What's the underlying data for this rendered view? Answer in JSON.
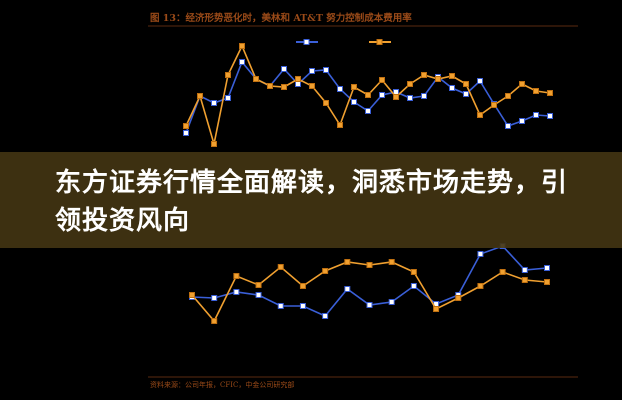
{
  "chart_data": [
    {
      "type": "line",
      "title": "图 13：经济形势恶化时，美林和 AT&T 努力控制成本费用率",
      "legend_placement": "top",
      "grid": false,
      "series": [
        {
          "color": "#3a5fd8",
          "values": [
            15,
            52,
            45,
            50,
            86,
            69,
            62,
            79,
            64,
            77,
            78,
            59,
            46,
            37,
            53,
            56,
            50,
            52,
            71,
            60,
            54,
            67,
            44,
            22,
            27,
            33,
            32
          ]
        },
        {
          "color": "#f0a030",
          "values": [
            22,
            52,
            4,
            73,
            102,
            69,
            62,
            61,
            69,
            62,
            45,
            23,
            61,
            53,
            68,
            51,
            64,
            73,
            69,
            72,
            64,
            33,
            43,
            52,
            64,
            57,
            55
          ]
        }
      ]
    },
    {
      "type": "line",
      "grid": false,
      "series": [
        {
          "color": "#3a5fd8",
          "values": [
            38,
            37,
            43,
            40,
            29,
            29,
            19,
            46,
            30,
            33,
            49,
            31,
            40,
            81,
            89,
            65,
            67
          ]
        },
        {
          "color": "#f0a030",
          "values": [
            40,
            14,
            59,
            50,
            68,
            49,
            64,
            73,
            70,
            73,
            63,
            26,
            37,
            49,
            63,
            55,
            53
          ]
        }
      ]
    }
  ],
  "source": "资料来源：公司年报，CFIC，中金公司研究部",
  "banner": {
    "headline": "东方证券行情全面解读，洞悉市场走势，引领投资风向"
  },
  "colors": {
    "title": "#9a4a18",
    "banner_bg": "#423412",
    "blue": "#3a5fd8",
    "orange": "#f0a030"
  }
}
